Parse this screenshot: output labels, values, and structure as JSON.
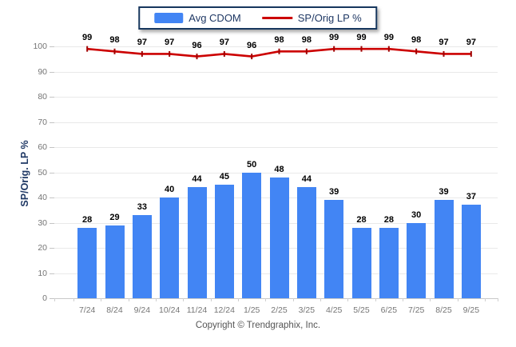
{
  "legend": {
    "items": [
      {
        "label": "Avg CDOM",
        "swatch": "bar-swatch"
      },
      {
        "label": "SP/Orig LP %",
        "swatch": "line-swatch"
      }
    ]
  },
  "footer": {
    "text": "Copyright © Trendgraphix, Inc."
  },
  "colors": {
    "bar": "#4285F4",
    "line": "#CC0000",
    "line_marker": "#A00000",
    "grid": "#E9E9E9",
    "axis_line": "#C9C9C9",
    "tick_label": "#757575",
    "value_label": "#000000",
    "legend_text": "#1F3864",
    "legend_border": "#17375E"
  },
  "chart_data": {
    "type": "bar",
    "title": "",
    "categories": [
      "7/24",
      "8/24",
      "9/24",
      "10/24",
      "11/24",
      "12/24",
      "1/25",
      "2/25",
      "3/25",
      "4/25",
      "5/25",
      "6/25",
      "7/25",
      "8/25",
      "9/25"
    ],
    "series": [
      {
        "name": "Avg CDOM",
        "type": "bar",
        "color": "#4285F4",
        "values": [
          28,
          29,
          33,
          40,
          44,
          45,
          50,
          48,
          44,
          39,
          28,
          28,
          30,
          39,
          37
        ]
      },
      {
        "name": "SP/Orig LP %",
        "type": "line",
        "color": "#CC0000",
        "values": [
          99,
          98,
          97,
          97,
          96,
          97,
          96,
          98,
          98,
          99,
          99,
          99,
          98,
          97,
          97
        ]
      }
    ],
    "xlabel": "",
    "ylabel": "SP/Orig. LP %",
    "ylim": [
      0,
      100
    ],
    "yticks": [
      0,
      10,
      20,
      30,
      40,
      50,
      60,
      70,
      80,
      90,
      100
    ],
    "grid": true,
    "legend_position": "top-center",
    "value_labels": true
  }
}
